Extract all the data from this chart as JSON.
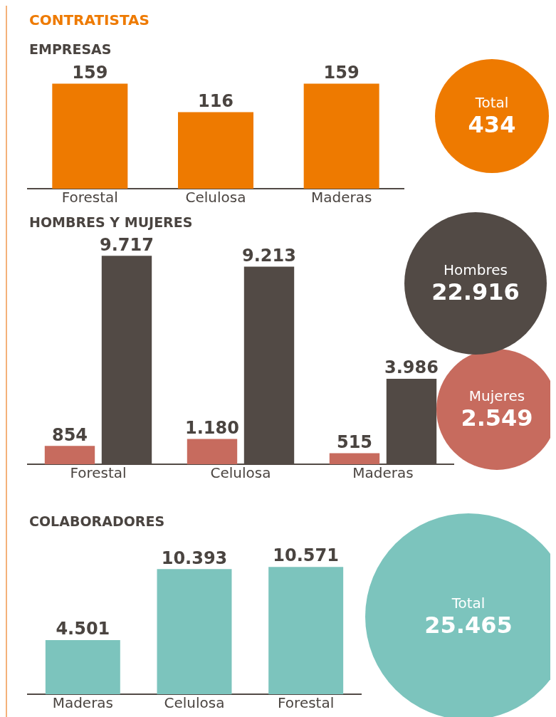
{
  "chart_data": [
    {
      "type": "bar",
      "title": "CONTRATISTAS",
      "subtitle": "EMPRESAS",
      "categories": [
        "Forestal",
        "Celulosa",
        "Maderas"
      ],
      "series": [
        {
          "name": "Total",
          "color": "#ee7a00",
          "values": [
            159,
            116,
            159
          ]
        }
      ],
      "data_labels": true,
      "annotations": [
        "434"
      ],
      "grid": false,
      "legend": "right"
    },
    {
      "type": "bar",
      "title": "HOMBRES Y MUJERES",
      "categories": [
        "Forestal",
        "Celulosa",
        "Maderas"
      ],
      "series": [
        {
          "name": "Mujeres",
          "color": "#c76b5e",
          "values": [
            854,
            1180,
            515
          ],
          "value_labels": [
            "854",
            "1.180",
            "515"
          ]
        },
        {
          "name": "Hombres",
          "color": "#524a45",
          "values": [
            9717,
            9213,
            3986
          ],
          "value_labels": [
            "9.717",
            "9.213",
            "3.986"
          ]
        }
      ],
      "annotations": [
        "2.549",
        "22.916"
      ],
      "grid": false,
      "legend": "right"
    },
    {
      "type": "bar",
      "title": "COLABORADORES",
      "categories": [
        "Maderas",
        "Celulosa",
        "Forestal"
      ],
      "series": [
        {
          "name": "Total",
          "color": "#7cc4bd",
          "values": [
            4501,
            10393,
            10571
          ],
          "value_labels": [
            "4.501",
            "10.393",
            "10.571"
          ]
        }
      ],
      "annotations": [
        "25.465"
      ],
      "grid": false,
      "legend": "right"
    }
  ]
}
